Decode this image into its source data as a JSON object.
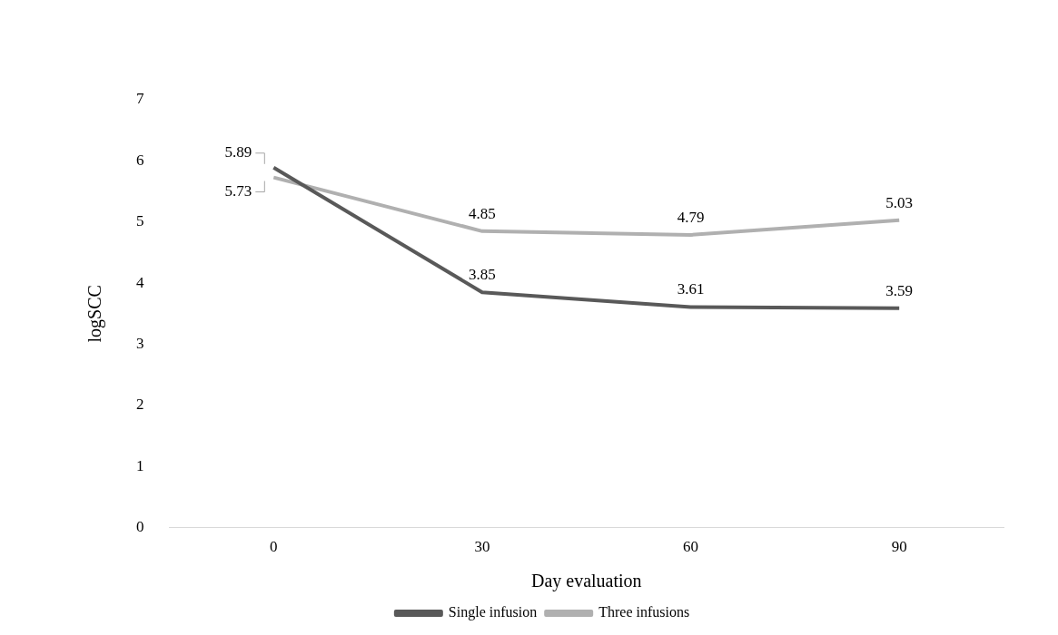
{
  "chart_data": {
    "type": "line",
    "xlabel": "Day evaluation",
    "ylabel": "logSCC",
    "categories": [
      "0",
      "30",
      "60",
      "90"
    ],
    "series": [
      {
        "name": "Single infusion",
        "color": "#595959",
        "values": [
          5.89,
          3.85,
          3.61,
          3.59
        ]
      },
      {
        "name": "Three infusions",
        "color": "#b0b0b0",
        "values": [
          5.73,
          4.85,
          4.79,
          5.03
        ]
      }
    ],
    "ylim": [
      0,
      7
    ],
    "yticks": [
      0,
      1,
      2,
      3,
      4,
      5,
      6,
      7
    ],
    "grid": false,
    "legend": "bottom",
    "marker": "none",
    "line_style": "solid",
    "data_labels": true
  }
}
